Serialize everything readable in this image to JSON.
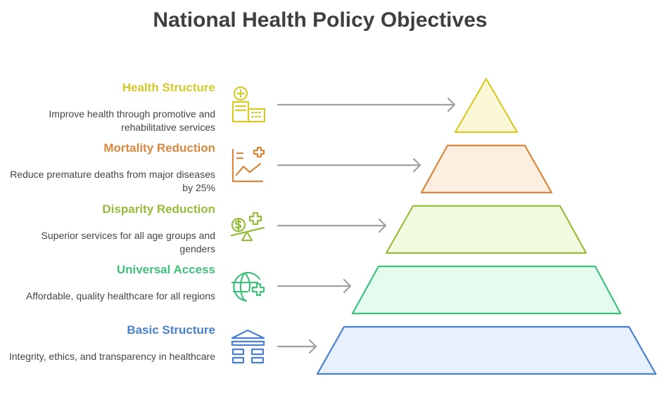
{
  "title": "National Health Policy Objectives",
  "levels": [
    {
      "title": "Health Structure",
      "description": "Improve health through promotive and rehabilitative services",
      "color": "#d6c92a",
      "fill": "#fbf8d8",
      "icon": "hospital-icon"
    },
    {
      "title": "Mortality Reduction",
      "description": "Reduce premature deaths from major diseases by 25%",
      "color": "#d9873c",
      "fill": "#fdeee2",
      "icon": "chart-medical-icon"
    },
    {
      "title": "Disparity Reduction",
      "description": "Superior services for all age groups and genders",
      "color": "#96bd3b",
      "fill": "#f2fbdf",
      "icon": "balance-icon"
    },
    {
      "title": "Universal Access",
      "description": "Affordable, quality healthcare for all regions",
      "color": "#3fc07b",
      "fill": "#e4fbee",
      "icon": "globe-medical-icon"
    },
    {
      "title": "Basic Structure",
      "description": "Integrity, ethics, and transparency in healthcare",
      "color": "#4a80d0",
      "fill": "#e7f0fd",
      "icon": "pillar-icon"
    }
  ]
}
